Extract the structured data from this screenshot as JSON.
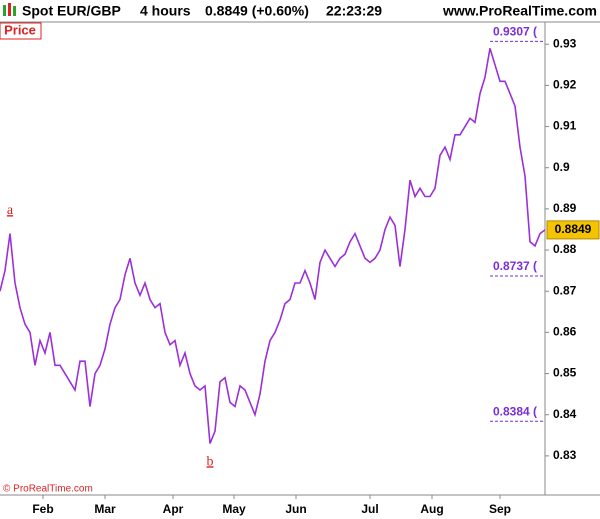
{
  "header": {
    "symbol": "Spot EUR/GBP",
    "period": "4 hours",
    "price": "0.8849 (+0.60%)",
    "time": "22:23:29",
    "site": "www.ProRealTime.com"
  },
  "chart_data": {
    "type": "line",
    "panel_label": "Price",
    "copyright": "© ProRealTime.com",
    "color": "#9b30d9",
    "values": [
      0.87,
      0.875,
      0.884,
      0.872,
      0.866,
      0.862,
      0.86,
      0.852,
      0.858,
      0.855,
      0.86,
      0.852,
      0.852,
      0.85,
      0.848,
      0.846,
      0.853,
      0.853,
      0.842,
      0.85,
      0.852,
      0.856,
      0.862,
      0.866,
      0.868,
      0.874,
      0.878,
      0.872,
      0.869,
      0.872,
      0.868,
      0.866,
      0.867,
      0.86,
      0.857,
      0.858,
      0.852,
      0.855,
      0.85,
      0.847,
      0.846,
      0.847,
      0.833,
      0.836,
      0.848,
      0.849,
      0.843,
      0.842,
      0.847,
      0.846,
      0.843,
      0.84,
      0.845,
      0.853,
      0.858,
      0.86,
      0.863,
      0.867,
      0.868,
      0.872,
      0.872,
      0.875,
      0.872,
      0.868,
      0.877,
      0.88,
      0.878,
      0.876,
      0.878,
      0.879,
      0.882,
      0.884,
      0.881,
      0.878,
      0.877,
      0.878,
      0.88,
      0.885,
      0.888,
      0.886,
      0.876,
      0.885,
      0.897,
      0.893,
      0.895,
      0.893,
      0.893,
      0.895,
      0.903,
      0.905,
      0.902,
      0.908,
      0.908,
      0.91,
      0.912,
      0.911,
      0.918,
      0.922,
      0.929,
      0.925,
      0.921,
      0.921,
      0.918,
      0.915,
      0.905,
      0.898,
      0.882,
      0.881,
      0.884,
      0.8849
    ],
    "xlim": [
      0,
      109
    ],
    "xticks": [
      {
        "value": 8.6,
        "label": "Feb"
      },
      {
        "value": 21,
        "label": "Mar"
      },
      {
        "value": 34.6,
        "label": "Apr"
      },
      {
        "value": 46.8,
        "label": "May"
      },
      {
        "value": 59.2,
        "label": "Jun"
      },
      {
        "value": 74,
        "label": "Jul"
      },
      {
        "value": 86.4,
        "label": "Aug"
      },
      {
        "value": 100,
        "label": "Sep"
      }
    ],
    "ylim": [
      0.8205,
      0.9354
    ],
    "yticks": [
      0.83,
      0.84,
      0.85,
      0.86,
      0.87,
      0.88,
      0.89,
      0.9,
      0.91,
      0.92,
      0.93
    ],
    "last_price": 0.8849,
    "levels": [
      {
        "value": 0.9307,
        "label": "0.9307 ("
      },
      {
        "value": 0.8737,
        "label": "0.8737 ("
      },
      {
        "value": 0.8384,
        "label": "0.8384 ("
      }
    ],
    "wave_labels": [
      {
        "x": 2,
        "value": 0.8895,
        "label": "a"
      },
      {
        "x": 42,
        "value": 0.8285,
        "label": "b"
      }
    ]
  }
}
